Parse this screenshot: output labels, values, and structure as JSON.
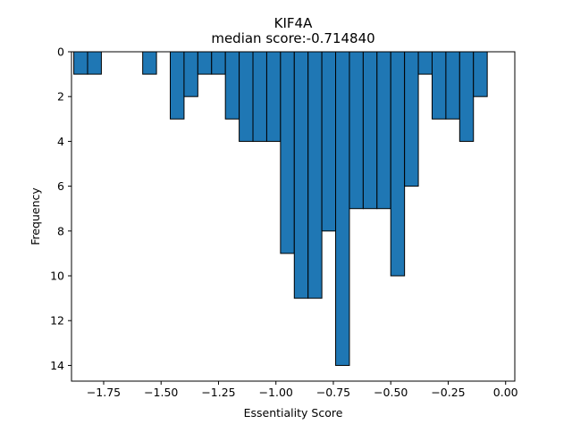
{
  "chart_data": {
    "type": "bar",
    "title_lines": [
      "KIF4A",
      "median score:-0.714840"
    ],
    "xlabel": "Essentiality Score",
    "ylabel": "Frequency",
    "xlim": [
      -1.89,
      0.04
    ],
    "ylim": [
      14.7,
      0
    ],
    "y_axis_inverted": true,
    "bin_width": 0.06,
    "x_ticks": [
      -1.75,
      -1.5,
      -1.25,
      -1.0,
      -0.75,
      -0.5,
      -0.25,
      0.0
    ],
    "x_tick_labels": [
      "−1.75",
      "−1.50",
      "−1.25",
      "−1.00",
      "−0.75",
      "−0.50",
      "−0.25",
      "0.00"
    ],
    "y_ticks": [
      0,
      2,
      4,
      6,
      8,
      10,
      12,
      14
    ],
    "y_tick_labels": [
      "0",
      "2",
      "4",
      "6",
      "8",
      "10",
      "12",
      "14"
    ],
    "bins": [
      {
        "x": -1.85,
        "count": 1
      },
      {
        "x": -1.79,
        "count": 1
      },
      {
        "x": -1.55,
        "count": 1
      },
      {
        "x": -1.43,
        "count": 3
      },
      {
        "x": -1.37,
        "count": 2
      },
      {
        "x": -1.31,
        "count": 1
      },
      {
        "x": -1.25,
        "count": 1
      },
      {
        "x": -1.19,
        "count": 3
      },
      {
        "x": -1.13,
        "count": 4
      },
      {
        "x": -1.07,
        "count": 4
      },
      {
        "x": -1.01,
        "count": 4
      },
      {
        "x": -0.95,
        "count": 9
      },
      {
        "x": -0.89,
        "count": 11
      },
      {
        "x": -0.83,
        "count": 11
      },
      {
        "x": -0.77,
        "count": 8
      },
      {
        "x": -0.71,
        "count": 14
      },
      {
        "x": -0.65,
        "count": 7
      },
      {
        "x": -0.59,
        "count": 7
      },
      {
        "x": -0.53,
        "count": 7
      },
      {
        "x": -0.47,
        "count": 10
      },
      {
        "x": -0.41,
        "count": 6
      },
      {
        "x": -0.35,
        "count": 1
      },
      {
        "x": -0.29,
        "count": 3
      },
      {
        "x": -0.23,
        "count": 3
      },
      {
        "x": -0.17,
        "count": 4
      },
      {
        "x": -0.11,
        "count": 2
      }
    ],
    "bar_color": "#1f77b4",
    "edge_color": "#000000",
    "grid": false
  }
}
